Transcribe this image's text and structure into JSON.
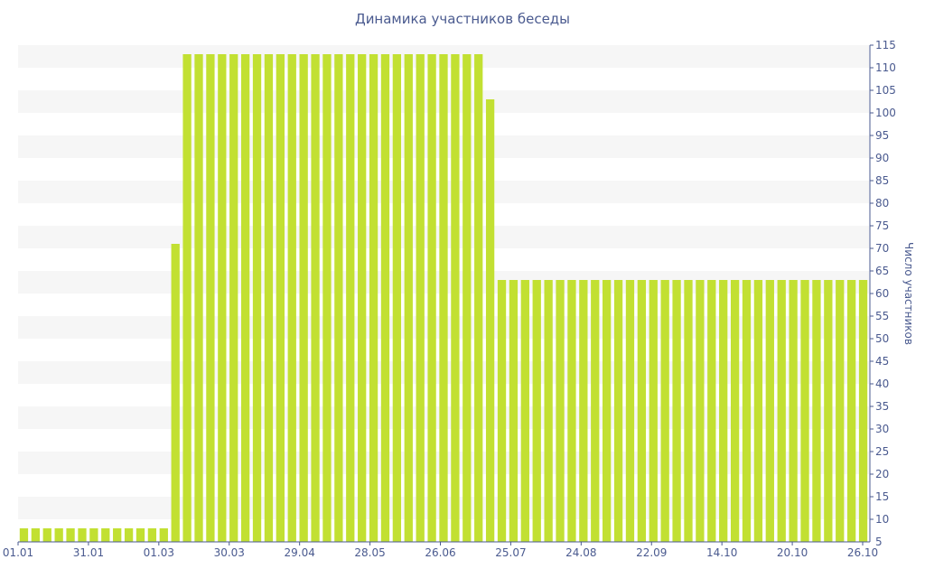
{
  "chart_data": {
    "type": "bar",
    "title": "Динамика участников беседы",
    "xlabel": "",
    "ylabel": "Число участников",
    "ylim": [
      5,
      115
    ],
    "yticks": [
      10,
      15,
      20,
      25,
      30,
      35,
      40,
      45,
      50,
      55,
      60,
      65,
      70,
      75,
      80,
      85,
      90,
      95,
      100,
      105,
      110,
      115
    ],
    "y_axis_side": "right",
    "grid": "alternating horizontal bands",
    "bar_color": "#c2e032",
    "band_color": "#f6f6f6",
    "tick_color": "#4a5a8f",
    "x_tick_labels": [
      "01.01",
      "31.01",
      "01.03",
      "30.03",
      "29.04",
      "28.05",
      "26.06",
      "25.07",
      "24.08",
      "22.09",
      "14.10",
      "20.10",
      "26.10"
    ],
    "series": [
      {
        "values": [
          8,
          8,
          8,
          8,
          8,
          8,
          8,
          8,
          8,
          8,
          8,
          8,
          8,
          71,
          113,
          113,
          113,
          113,
          113,
          113,
          113,
          113,
          113,
          113,
          113,
          113,
          113,
          113,
          113,
          113,
          113,
          113,
          113,
          113,
          113,
          113,
          113,
          113,
          113,
          113,
          103,
          63,
          63,
          63,
          63,
          63,
          63,
          63,
          63,
          63,
          63,
          63,
          63,
          63,
          63,
          63,
          63,
          63,
          63,
          63,
          63,
          63,
          63,
          63,
          63,
          63,
          63,
          63,
          63,
          63,
          63,
          63,
          63
        ]
      }
    ]
  }
}
